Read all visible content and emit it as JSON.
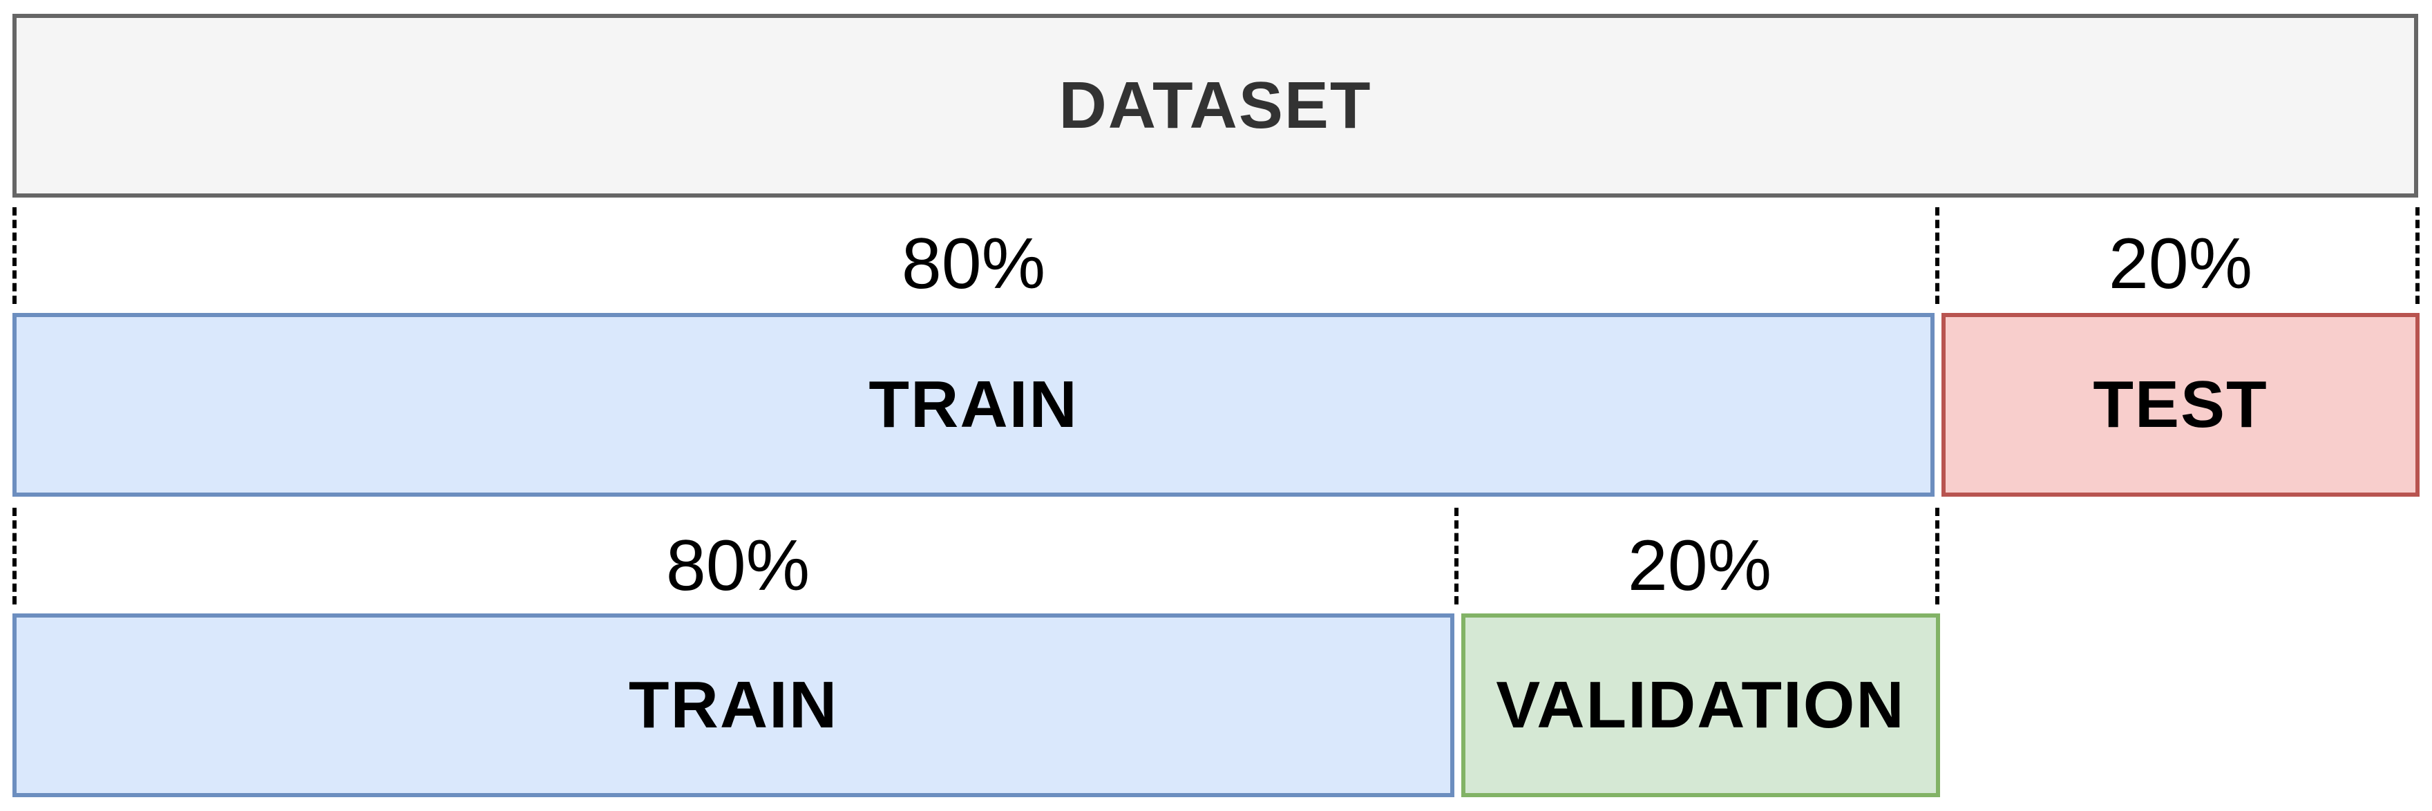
{
  "dataset": {
    "label": "DATASET"
  },
  "split_1": {
    "train": {
      "label": "TRAIN",
      "percent": "80%"
    },
    "test": {
      "label": "TEST",
      "percent": "20%"
    }
  },
  "split_2": {
    "train": {
      "label": "TRAIN",
      "percent": "80%"
    },
    "validation": {
      "label": "VALIDATION",
      "percent": "20%"
    }
  },
  "colors": {
    "dataset_fill": "#f5f5f5",
    "dataset_border": "#666666",
    "train_fill": "#dae8fc",
    "train_border": "#6c8ebf",
    "test_fill": "#f8cecc",
    "test_border": "#b85450",
    "validation_fill": "#d5e8d4",
    "validation_border": "#82b366"
  }
}
